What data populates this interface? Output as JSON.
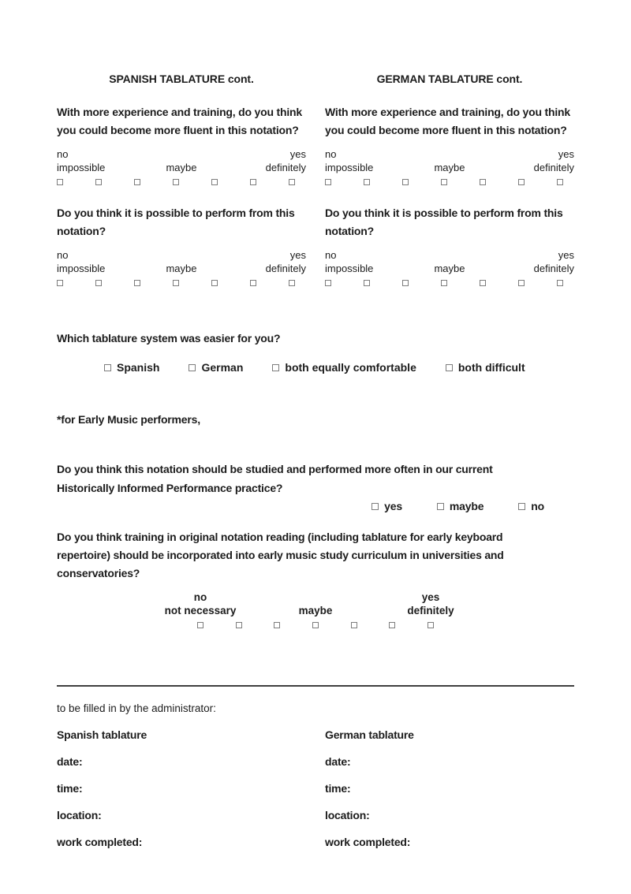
{
  "tablature_columns": [
    {
      "heading": "SPANISH TABLATURE cont.",
      "fluency_question": "With more experience and training, do you think\nyou could become more fluent in this notation?",
      "perform_question": "Do you think it is possible to perform from this\nnotation?"
    },
    {
      "heading": "GERMAN TABLATURE cont.",
      "fluency_question": "With more experience and training, do you think\nyou could become more fluent in this notation?",
      "perform_question": "Do you think it is possible to perform from this\nnotation?"
    }
  ],
  "likert_scale": {
    "top_left": "no",
    "top_right": "yes",
    "left": "impossible",
    "center": "maybe",
    "right": "definitely",
    "points": 7
  },
  "easier_question": {
    "text": "Which tablature system was easier for you?",
    "options": [
      "Spanish",
      "German",
      "both equally comfortable",
      "both difficult"
    ]
  },
  "early_music": {
    "note": "*for Early Music performers,",
    "hip_question": "Do you think this notation should be studied and performed more often in our current\nHistorically Informed Performance practice?",
    "hip_options": [
      "yes",
      "maybe",
      "no"
    ],
    "curriculum_question": "Do you think training in original notation reading (including tablature for early keyboard\nrepertoire) should be incorporated into early music study curriculum in universities and\nconservatories?",
    "curriculum_scale": {
      "top_left": "no",
      "top_right": "yes",
      "left": "not necessary",
      "center": "maybe",
      "right": "definitely",
      "points": 7
    }
  },
  "admin_section": {
    "note": "to be filled in by the administrator:",
    "columns": [
      {
        "title": "Spanish tablature"
      },
      {
        "title": "German tablature"
      }
    ],
    "fields": [
      "date:",
      "time:",
      "location:",
      "work completed:"
    ]
  },
  "colors": {
    "text": "#1c1c1c",
    "checkbox_border": "#7d7d7d",
    "divider": "#3f3f3f"
  }
}
